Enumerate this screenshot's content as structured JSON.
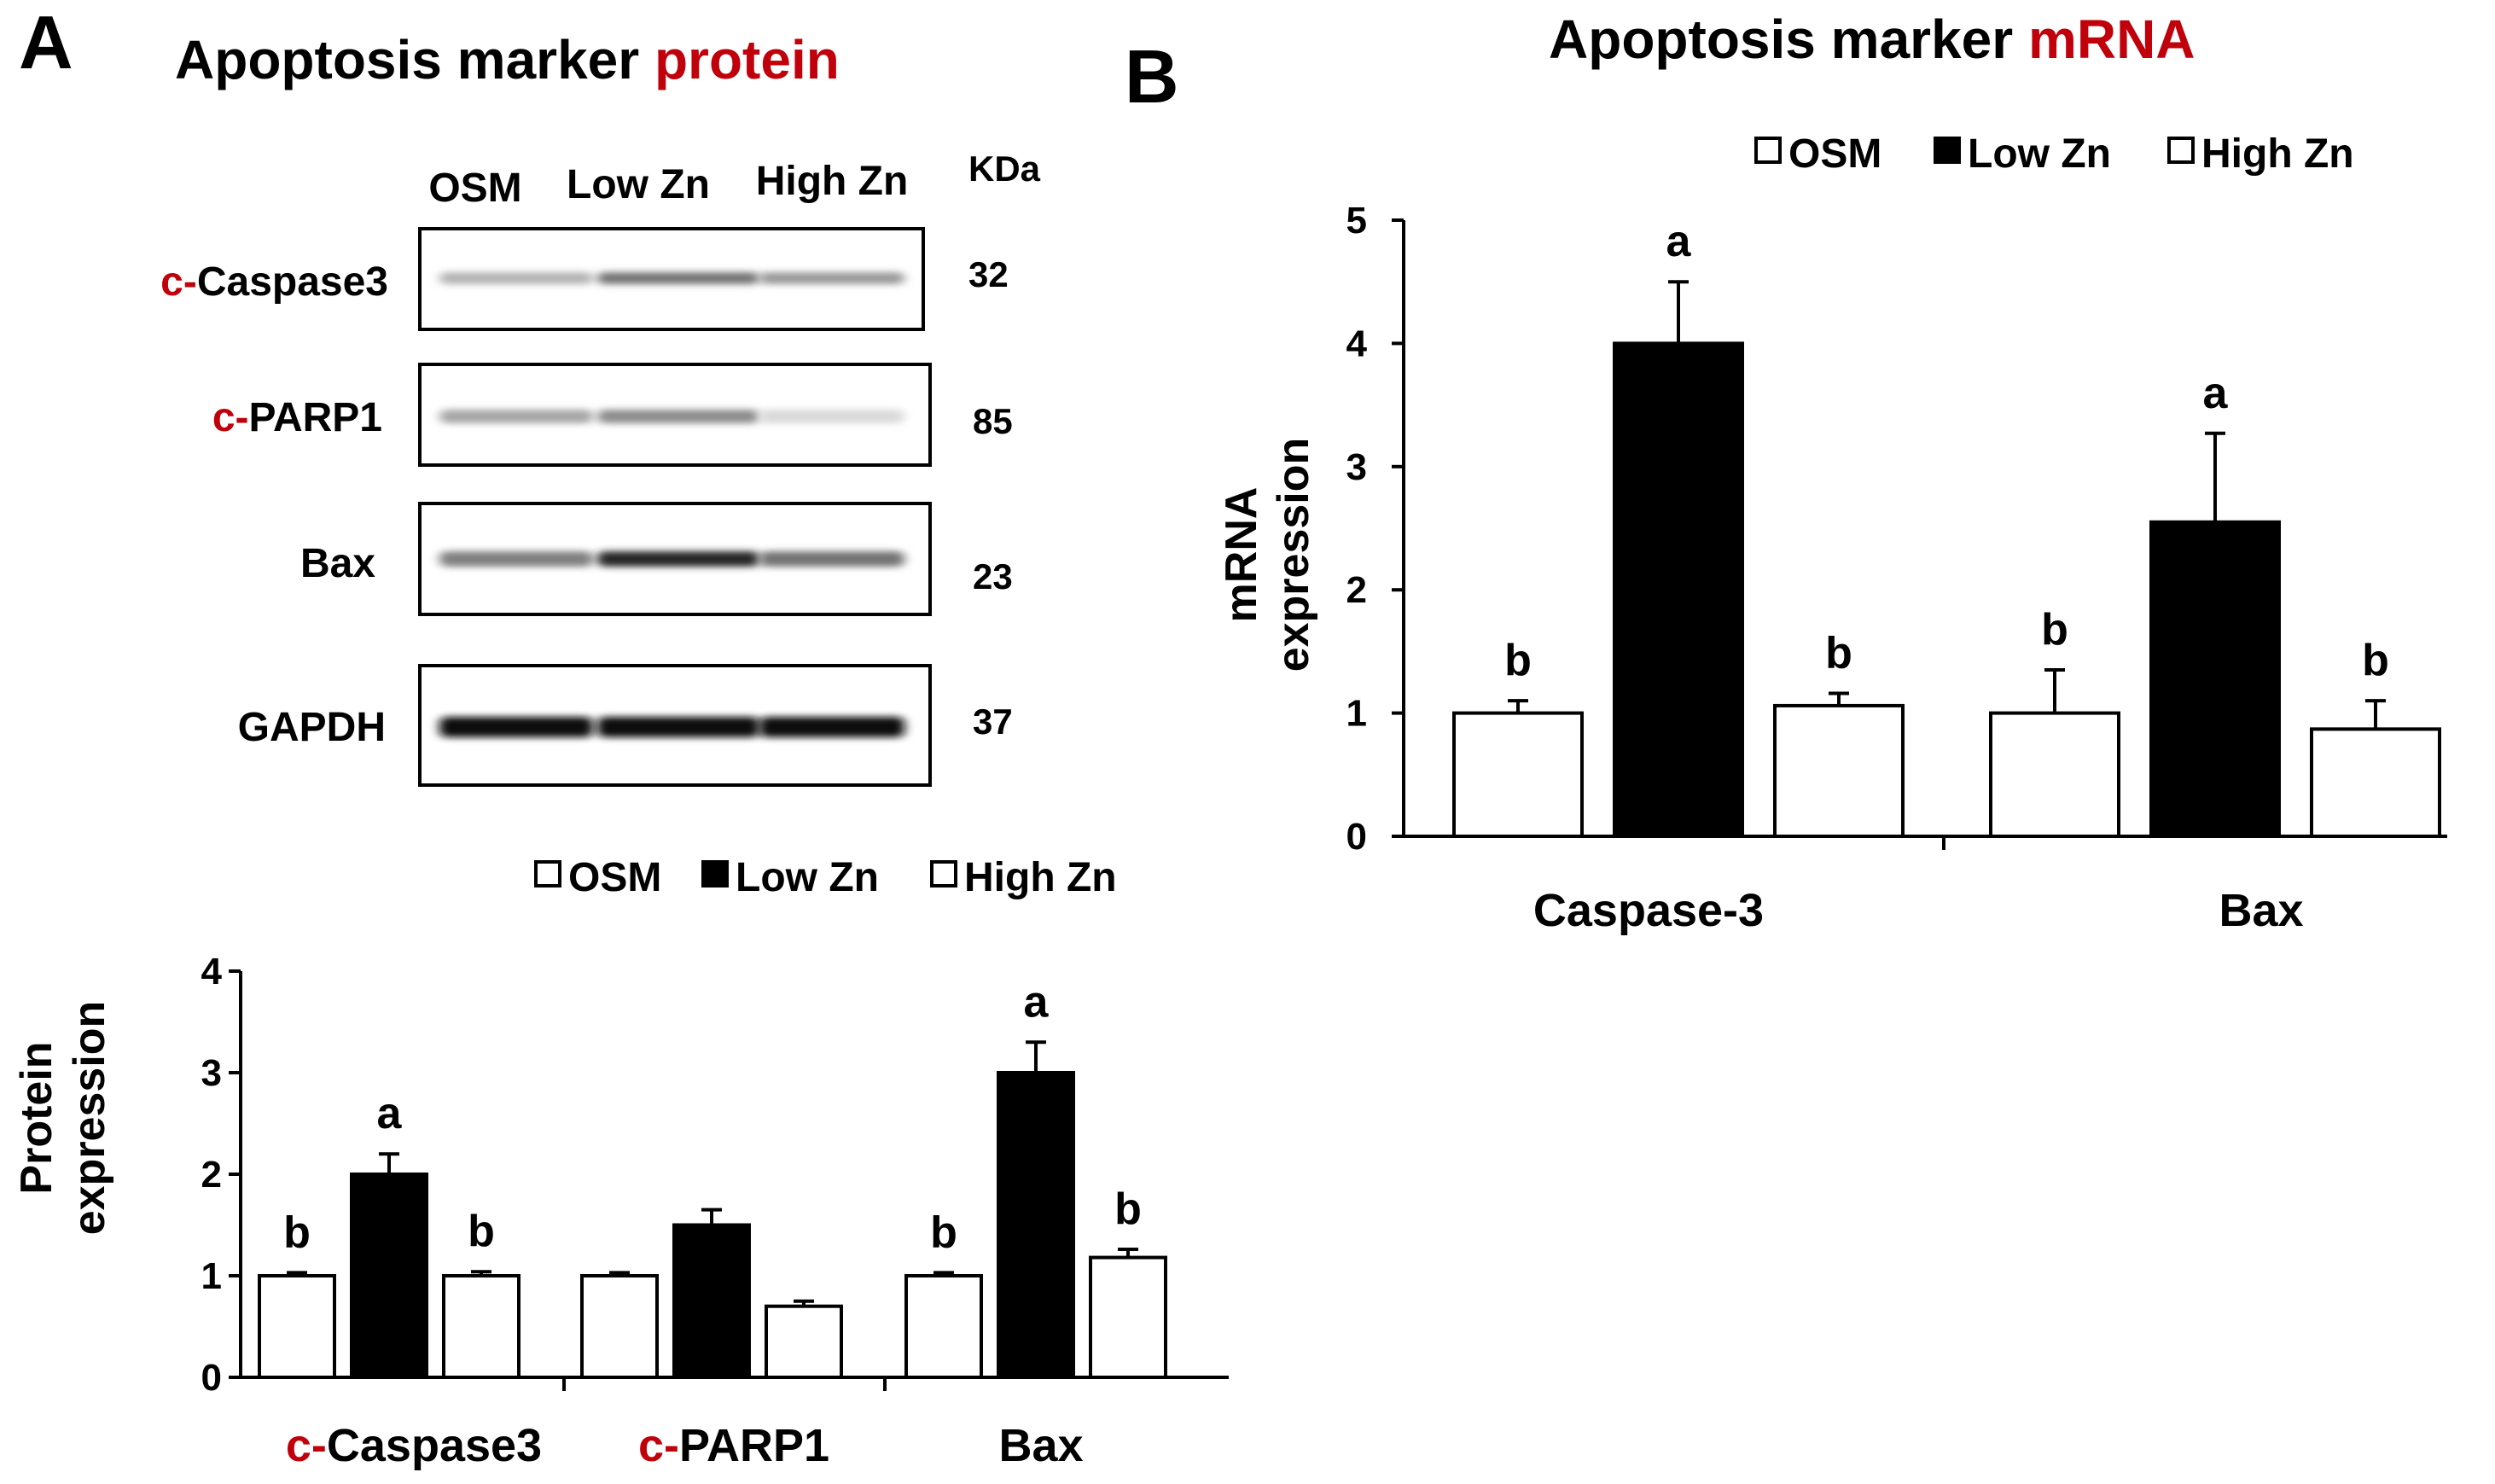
{
  "panel_a": {
    "letter": "A",
    "title_prefix": "Apoptosis marker ",
    "title_highlight": "protein",
    "kda_header": "KDa",
    "lanes": [
      "OSM",
      "Low Zn",
      "High Zn"
    ],
    "blots": [
      {
        "prefix": "c-",
        "name": "Caspase3",
        "kda": "32",
        "intensities": [
          0.3,
          0.55,
          0.4
        ]
      },
      {
        "prefix": "c-",
        "name": "PARP1",
        "kda": "85",
        "intensities": [
          0.35,
          0.45,
          0.15
        ]
      },
      {
        "prefix": "",
        "name": "Bax",
        "kda": "23",
        "intensities": [
          0.5,
          0.85,
          0.55
        ]
      },
      {
        "prefix": "",
        "name": "GAPDH",
        "kda": "37",
        "intensities": [
          0.95,
          0.95,
          0.95
        ]
      }
    ]
  },
  "panel_b": {
    "letter": "B",
    "title_prefix": "Apoptosis marker ",
    "title_highlight": "mRNA"
  },
  "colors": {
    "accent": "#c0000b",
    "bar_dark": "#000000",
    "bar_light": "#ffffff"
  },
  "chart_data": [
    {
      "type": "bar",
      "id": "protein",
      "ylabel_line1": "Protein",
      "ylabel_line2": "expression",
      "ylim": [
        0,
        4
      ],
      "yticks": [
        "0",
        "1",
        "2",
        "3",
        "4"
      ],
      "categories": [
        {
          "prefix": "c-",
          "name": "Caspase3"
        },
        {
          "prefix": "c-",
          "name": "PARP1"
        },
        {
          "prefix": "",
          "name": "Bax"
        }
      ],
      "legend": [
        "OSM",
        "Low Zn",
        "High Zn"
      ],
      "series": [
        {
          "name": "OSM",
          "fill": "white",
          "values": [
            1.0,
            1.0,
            1.0
          ],
          "errors": [
            0.03,
            0.03,
            0.03
          ],
          "letters": [
            "b",
            "",
            "b"
          ]
        },
        {
          "name": "Low Zn",
          "fill": "black",
          "values": [
            2.0,
            1.5,
            3.0
          ],
          "errors": [
            0.2,
            0.15,
            0.3
          ],
          "letters": [
            "a",
            "",
            "a"
          ]
        },
        {
          "name": "High Zn",
          "fill": "white",
          "values": [
            1.0,
            0.7,
            1.18
          ],
          "errors": [
            0.04,
            0.05,
            0.08
          ],
          "letters": [
            "b",
            "",
            "b"
          ]
        }
      ]
    },
    {
      "type": "bar",
      "id": "mrna",
      "ylabel_line1": "mRNA",
      "ylabel_line2": "expression",
      "ylim": [
        0,
        5
      ],
      "yticks": [
        "0",
        "1",
        "2",
        "3",
        "4",
        "5"
      ],
      "categories": [
        {
          "prefix": "",
          "name": "Caspase-3"
        },
        {
          "prefix": "",
          "name": "Bax"
        }
      ],
      "legend": [
        "OSM",
        "Low Zn",
        "High Zn"
      ],
      "series": [
        {
          "name": "OSM",
          "fill": "white",
          "values": [
            1.0,
            1.0
          ],
          "errors": [
            0.1,
            0.35
          ],
          "letters": [
            "b",
            "b"
          ]
        },
        {
          "name": "Low Zn",
          "fill": "black",
          "values": [
            4.0,
            2.55
          ],
          "errors": [
            0.5,
            0.72
          ],
          "letters": [
            "a",
            "a"
          ]
        },
        {
          "name": "High Zn",
          "fill": "white",
          "values": [
            1.06,
            0.87
          ],
          "errors": [
            0.1,
            0.23
          ],
          "letters": [
            "b",
            "b"
          ]
        }
      ]
    }
  ]
}
